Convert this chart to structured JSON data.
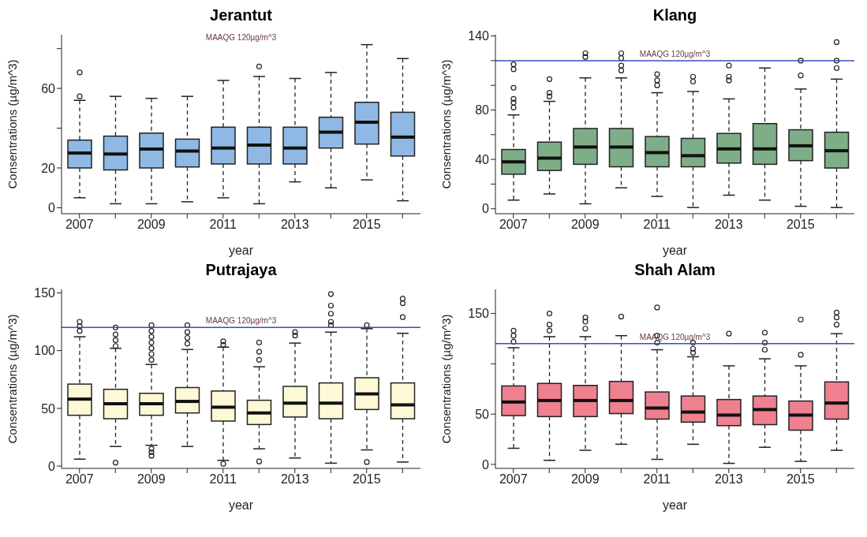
{
  "chart_data": [
    {
      "type": "box",
      "title": "Jerantut",
      "xlabel": "year",
      "ylabel": "Consentrations (µg/m^3)",
      "annotations": [
        "MAAQG 120µg/m^3"
      ],
      "categories": [
        "2007",
        null,
        "2009",
        null,
        "2011",
        null,
        "2013",
        null,
        "2015",
        null
      ],
      "ylim": [
        -3,
        87
      ],
      "yticks": [
        0,
        20,
        {
          "value": 40,
          "label": null
        },
        60,
        {
          "value": 80,
          "label": null
        }
      ],
      "series": [
        {
          "color": "#8fb8e4",
          "boxes": [
            {
              "low": 5,
              "q1": 20,
              "median": 27.5,
              "q3": 34,
              "high": 54,
              "outliers": [
                56,
                68
              ]
            },
            {
              "low": 2,
              "q1": 19,
              "median": 27,
              "q3": 36,
              "high": 56
            },
            {
              "low": 2,
              "q1": 20,
              "median": 29.5,
              "q3": 37.5,
              "high": 55
            },
            {
              "low": 3,
              "q1": 20.5,
              "median": 28.5,
              "q3": 34.5,
              "high": 56
            },
            {
              "low": 5,
              "q1": 22,
              "median": 30,
              "q3": 40.5,
              "high": 64
            },
            {
              "low": 2,
              "q1": 22,
              "median": 31.5,
              "q3": 40.5,
              "high": 66,
              "outliers": [
                71
              ]
            },
            {
              "low": 13,
              "q1": 22,
              "median": 30,
              "q3": 40.5,
              "high": 65
            },
            {
              "low": 10,
              "q1": 30,
              "median": 38,
              "q3": 45.5,
              "high": 68
            },
            {
              "low": 14,
              "q1": 32,
              "median": 43,
              "q3": 53,
              "high": 82
            },
            {
              "low": 3.5,
              "q1": 26,
              "median": 35.5,
              "q3": 48,
              "high": 75
            }
          ]
        }
      ]
    },
    {
      "type": "box",
      "title": "Klang",
      "xlabel": "year",
      "ylabel": "Consentrations (µg/m^3)",
      "categories": [
        "2007",
        null,
        "2009",
        null,
        "2011",
        null,
        "2013",
        null,
        "2015",
        null
      ],
      "ylim": [
        -4,
        141
      ],
      "yticks": [
        0,
        {
          "value": 20,
          "label": null
        },
        40,
        {
          "value": 60,
          "label": null
        },
        80,
        {
          "value": 100,
          "label": null
        },
        {
          "value": 120,
          "label": null
        },
        140
      ],
      "ref_lines": [
        {
          "axis": "y",
          "value": 120,
          "label": "MAAQG 120µg/m^3",
          "color": "#3a4fb8"
        }
      ],
      "series": [
        {
          "color": "#7eae88",
          "boxes": [
            {
              "low": 7,
              "q1": 28,
              "median": 38,
              "q3": 48,
              "high": 76,
              "outliers": [
                82,
                86,
                89,
                98,
                113,
                117
              ]
            },
            {
              "low": 12,
              "q1": 31,
              "median": 41,
              "q3": 54,
              "high": 87,
              "outliers": [
                91,
                94,
                105
              ]
            },
            {
              "low": 4,
              "q1": 36,
              "median": 50,
              "q3": 65,
              "high": 106,
              "outliers": [
                123,
                126
              ]
            },
            {
              "low": 17,
              "q1": 34,
              "median": 50,
              "q3": 65,
              "high": 106,
              "outliers": [
                112,
                116,
                122,
                126
              ]
            },
            {
              "low": 10,
              "q1": 34,
              "median": 45.5,
              "q3": 58.5,
              "high": 94,
              "outliers": [
                100,
                104,
                109
              ]
            },
            {
              "low": 1,
              "q1": 34,
              "median": 43,
              "q3": 57,
              "high": 95,
              "outliers": [
                103,
                107
              ]
            },
            {
              "low": 11,
              "q1": 37,
              "median": 48.5,
              "q3": 61,
              "high": 89,
              "outliers": [
                104,
                107,
                116
              ]
            },
            {
              "low": 7,
              "q1": 36,
              "median": 48.5,
              "q3": 69,
              "high": 114
            },
            {
              "low": 2,
              "q1": 39,
              "median": 51,
              "q3": 64,
              "high": 97,
              "outliers": [
                108,
                120
              ]
            },
            {
              "low": 1,
              "q1": 33,
              "median": 47,
              "q3": 62,
              "high": 105,
              "outliers": [
                114,
                120,
                135
              ]
            }
          ]
        }
      ]
    },
    {
      "type": "box",
      "title": "Putrajaya",
      "xlabel": "year",
      "ylabel": "Consentrations (µg/m^3)",
      "categories": [
        "2007",
        null,
        "2009",
        null,
        "2011",
        null,
        "2013",
        null,
        "2015",
        null
      ],
      "ylim": [
        -2,
        153
      ],
      "yticks": [
        0,
        50,
        100,
        150
      ],
      "ref_lines": [
        {
          "axis": "y",
          "value": 120,
          "label": "MAAQG 120µg/m^3",
          "color": "#3a4fb8"
        }
      ],
      "series": [
        {
          "color": "#fdf9d6",
          "boxes": [
            {
              "low": 6,
              "q1": 44,
              "median": 58,
              "q3": 71,
              "high": 112,
              "outliers": [
                117,
                121,
                125
              ]
            },
            {
              "low": 17,
              "q1": 41,
              "median": 54,
              "q3": 66.5,
              "high": 102,
              "outliers": [
                3,
                104,
                109,
                114,
                120
              ]
            },
            {
              "low": 18,
              "q1": 44,
              "median": 54,
              "q3": 63,
              "high": 88,
              "outliers": [
                9,
                12,
                15,
                92,
                97,
                102,
                107,
                112,
                117,
                122
              ]
            },
            {
              "low": 17,
              "q1": 46,
              "median": 56,
              "q3": 68,
              "high": 101,
              "outliers": [
                106,
                111,
                116,
                122
              ]
            },
            {
              "low": 5,
              "q1": 39,
              "median": 51,
              "q3": 65,
              "high": 103,
              "outliers": [
                2,
                105,
                108
              ]
            },
            {
              "low": 15,
              "q1": 36,
              "median": 46,
              "q3": 57,
              "high": 86,
              "outliers": [
                4,
                92,
                99,
                107
              ]
            },
            {
              "low": 7,
              "q1": 42.5,
              "median": 54.5,
              "q3": 69,
              "high": 106.5,
              "outliers": [
                113,
                116
              ]
            },
            {
              "low": 2.5,
              "q1": 41,
              "median": 54.5,
              "q3": 72,
              "high": 116,
              "outliers": [
                122,
                125,
                132,
                139,
                149
              ]
            },
            {
              "low": 14,
              "q1": 49,
              "median": 62.5,
              "q3": 76.5,
              "high": 119,
              "outliers": [
                3.5,
                122
              ]
            },
            {
              "low": 3.5,
              "q1": 41,
              "median": 53,
              "q3": 72,
              "high": 115,
              "outliers": [
                129,
                141,
                145
              ]
            }
          ]
        }
      ]
    },
    {
      "type": "box",
      "title": "Shah Alam",
      "xlabel": "year",
      "ylabel": "Consentrations (µg/m^3)",
      "categories": [
        "2007",
        null,
        "2009",
        null,
        "2011",
        null,
        "2013",
        null,
        "2015",
        null
      ],
      "ylim": [
        -4,
        174
      ],
      "yticks": [
        0,
        50,
        {
          "value": 100,
          "label": null
        },
        150
      ],
      "ref_lines": [
        {
          "axis": "y",
          "value": 120,
          "label": "MAAQG 120µg/m^3",
          "color": "#3a4fb8"
        }
      ],
      "series": [
        {
          "color": "#ee8090",
          "boxes": [
            {
              "low": 16,
              "q1": 48.5,
              "median": 62,
              "q3": 78,
              "high": 116,
              "outliers": [
                122,
                128,
                133
              ]
            },
            {
              "low": 4,
              "q1": 47.5,
              "median": 63.5,
              "q3": 80.5,
              "high": 127,
              "outliers": [
                133,
                139,
                150
              ]
            },
            {
              "low": 14,
              "q1": 47.5,
              "median": 63.5,
              "q3": 78.5,
              "high": 127,
              "outliers": [
                135,
                142,
                146
              ]
            },
            {
              "low": 20,
              "q1": 50.5,
              "median": 63.5,
              "q3": 82.5,
              "high": 128,
              "outliers": [
                147
              ]
            },
            {
              "low": 5,
              "q1": 45,
              "median": 56,
              "q3": 72,
              "high": 114,
              "outliers": [
                121,
                128,
                156
              ]
            },
            {
              "low": 20,
              "q1": 42,
              "median": 52,
              "q3": 68,
              "high": 107,
              "outliers": [
                111,
                115,
                121
              ]
            },
            {
              "low": 1,
              "q1": 38.5,
              "median": 49,
              "q3": 64.5,
              "high": 98,
              "outliers": [
                130
              ]
            },
            {
              "low": 17,
              "q1": 39.5,
              "median": 54.5,
              "q3": 68,
              "high": 105,
              "outliers": [
                114,
                121,
                131
              ]
            },
            {
              "low": 3,
              "q1": 34,
              "median": 49,
              "q3": 63,
              "high": 98,
              "outliers": [
                109,
                144
              ]
            },
            {
              "low": 14,
              "q1": 45,
              "median": 61,
              "q3": 82,
              "high": 130,
              "outliers": [
                139,
                146,
                151
              ]
            }
          ]
        }
      ]
    }
  ]
}
